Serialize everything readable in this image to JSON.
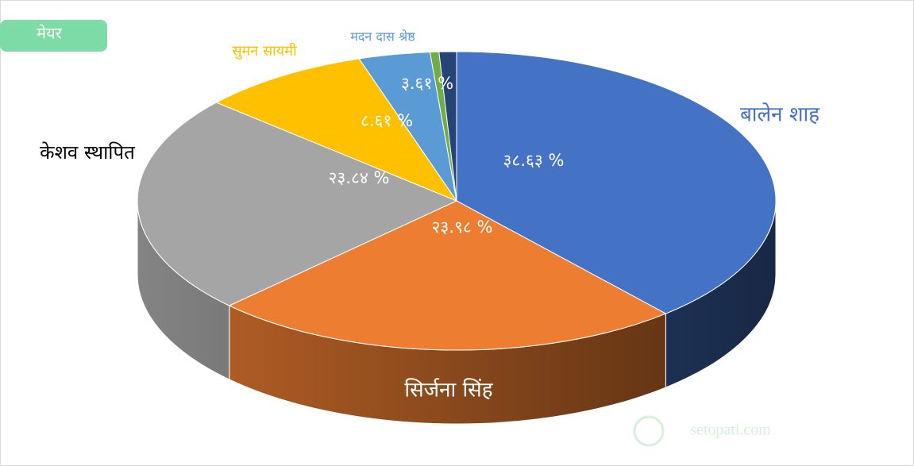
{
  "chart_data": {
    "type": "pie",
    "title": "मेयर",
    "categories": [
      "बालेन शाह",
      "सिर्जना सिंह",
      "केशव स्थापित",
      "सुमन सायमी",
      "मदन दास श्रेष्ठ",
      null,
      null
    ],
    "values": [
      38.63,
      23.98,
      23.84,
      8.61,
      3.61,
      0.45,
      0.88
    ],
    "value_labels": [
      "३८.६३ %",
      "२३.९८ %",
      "२३.८४ %",
      "८.६१ %",
      "३.६१ %",
      null,
      null
    ],
    "colors": [
      "#4472c4",
      "#ed7d31",
      "#a5a5a5",
      "#ffc000",
      "#5b9bd5",
      "#70ad47",
      "#264478"
    ],
    "watermark": "setopati.com"
  }
}
